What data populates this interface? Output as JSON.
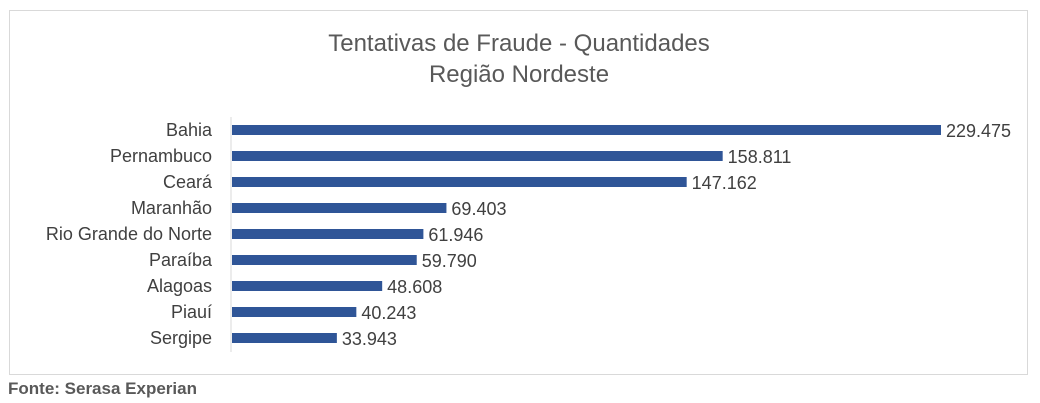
{
  "chart_data": {
    "type": "bar",
    "orientation": "horizontal",
    "title": [
      "Tentativas de Fraude - Quantidades",
      "Região Nordeste"
    ],
    "categories": [
      "Bahia",
      "Pernambuco",
      "Ceará",
      "Maranhão",
      "Rio Grande do Norte",
      "Paraíba",
      "Alagoas",
      "Piauí",
      "Sergipe"
    ],
    "values": [
      229475,
      158811,
      147162,
      69403,
      61946,
      59790,
      48608,
      40243,
      33943
    ],
    "value_labels": [
      "229.475",
      "158.811",
      "147.162",
      "69.403",
      "61.946",
      "59.790",
      "48.608",
      "40.243",
      "33.943"
    ],
    "bar_color": "#2f5597",
    "grid": false,
    "legend": "none",
    "xlim": [
      0,
      229475
    ]
  },
  "source": "Fonte: Serasa Experian"
}
